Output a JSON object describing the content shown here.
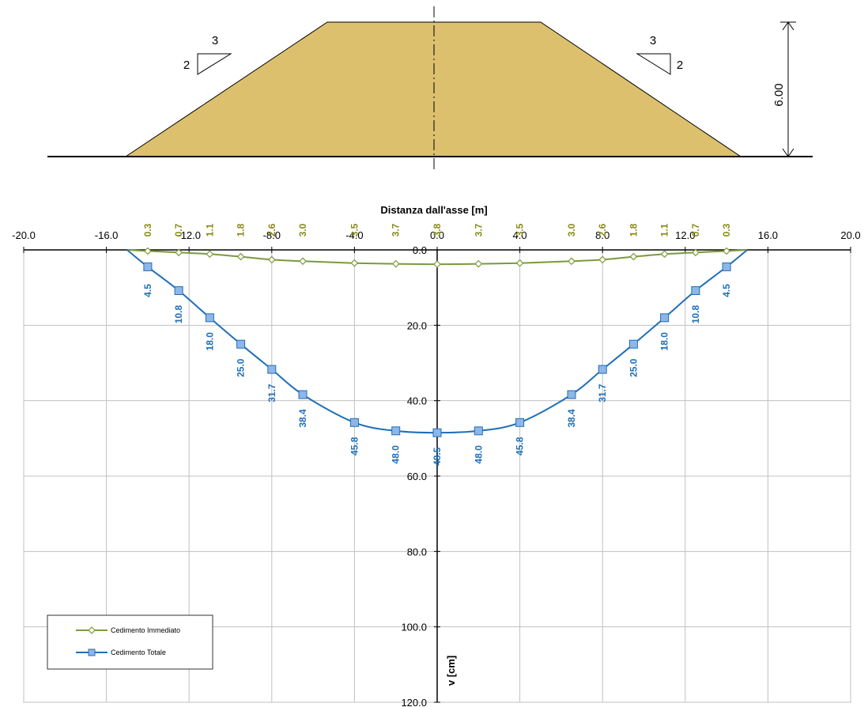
{
  "embankment": {
    "slope_left": {
      "run": "3",
      "rise": "2"
    },
    "slope_right": {
      "run": "3",
      "rise": "2"
    },
    "height_label": "6.00",
    "fill_color": "#dcc06e"
  },
  "chart_data": {
    "type": "line",
    "title": "",
    "xlabel": "Distanza dall'asse [m]",
    "ylabel": "v [cm]",
    "xlim": [
      -20,
      20
    ],
    "ylim": [
      0,
      120
    ],
    "y_inverted": true,
    "grid": true,
    "x_tick_labels": [
      "-20.0",
      "-16.0",
      "-12.0",
      "-8.0",
      "-4.0",
      "0.0",
      "4.0",
      "8.0",
      "12.0",
      "16.0",
      "20.0"
    ],
    "y_tick_labels": [
      "0.0",
      "20.0",
      "40.0",
      "60.0",
      "80.0",
      "100.0",
      "120.0"
    ],
    "legend_position": "bottom-left",
    "series": [
      {
        "name": "Cedimento Immediato",
        "color": "#7b9a3a",
        "label_color": "#8a8a1a",
        "marker": "diamond",
        "x": [
          -15,
          -14,
          -12.5,
          -11,
          -9.5,
          -8,
          -6.5,
          -4,
          -2,
          0,
          2,
          4,
          6.5,
          8,
          9.5,
          11,
          12.5,
          14,
          15
        ],
        "values": [
          0,
          0.3,
          0.7,
          1.1,
          1.8,
          2.6,
          3.0,
          3.5,
          3.7,
          3.8,
          3.7,
          3.5,
          3.0,
          2.6,
          1.8,
          1.1,
          0.7,
          0.3,
          0
        ],
        "labels": [
          "",
          "0.3",
          "0.7",
          "1.1",
          "1.8",
          "2.6",
          "3.0",
          "3.5",
          "3.7",
          "3.8",
          "3.7",
          "3.5",
          "3.0",
          "2.6",
          "1.8",
          "1.1",
          "0.7",
          "0.3",
          ""
        ]
      },
      {
        "name": "Cedimento Totale",
        "color": "#1f6fb8",
        "label_color": "#1f6fb8",
        "marker": "square",
        "x": [
          -15,
          -14,
          -12.5,
          -11,
          -9.5,
          -8,
          -6.5,
          -4,
          -2,
          0,
          2,
          4,
          6.5,
          8,
          9.5,
          11,
          12.5,
          14,
          15
        ],
        "values": [
          0,
          4.5,
          10.8,
          18.0,
          25.0,
          31.7,
          38.4,
          45.8,
          48.0,
          48.5,
          48.0,
          45.8,
          38.4,
          31.7,
          25.0,
          18.0,
          10.8,
          4.5,
          0
        ],
        "labels": [
          "",
          "4.5",
          "10.8",
          "18.0",
          "25.0",
          "31.7",
          "38.4",
          "45.8",
          "48.0",
          "48.5",
          "48.0",
          "45.8",
          "38.4",
          "31.7",
          "25.0",
          "18.0",
          "10.8",
          "4.5",
          ""
        ]
      }
    ]
  }
}
